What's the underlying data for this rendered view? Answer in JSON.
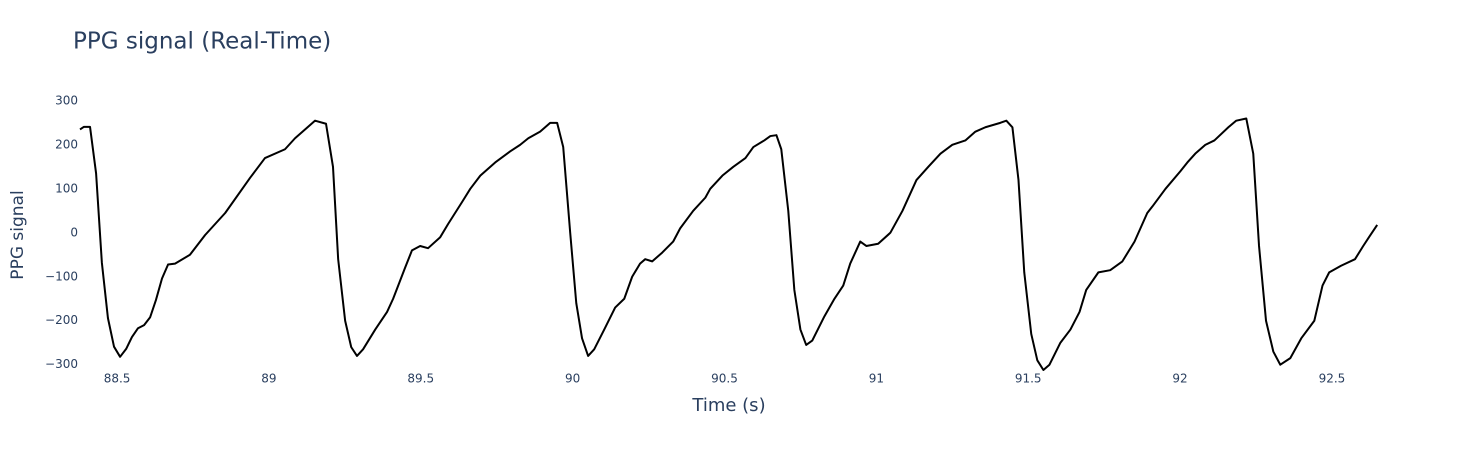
{
  "chart_data": {
    "type": "line",
    "title": "PPG signal (Real-Time)",
    "x_label": "Time (s)",
    "y_label": "PPG signal",
    "xlim": [
      88.378,
      92.655
    ],
    "ylim": [
      -312,
      302
    ],
    "xticks": [
      88.5,
      89,
      89.5,
      90,
      90.5,
      91,
      91.5,
      92,
      92.5
    ],
    "yticks": [
      {
        "value": -300,
        "label": "−300"
      },
      {
        "value": -200,
        "label": "−200"
      },
      {
        "value": -100,
        "label": "−100"
      },
      0,
      100,
      200,
      300
    ],
    "grid": false,
    "x": [
      88.378,
      88.391,
      88.411,
      88.431,
      88.45,
      88.47,
      88.49,
      88.51,
      88.53,
      88.549,
      88.569,
      88.589,
      88.609,
      88.628,
      88.648,
      88.668,
      88.691,
      88.74,
      88.79,
      88.856,
      88.938,
      88.987,
      89.053,
      89.086,
      89.152,
      89.188,
      89.211,
      89.228,
      89.251,
      89.271,
      89.29,
      89.31,
      89.35,
      89.389,
      89.409,
      89.448,
      89.471,
      89.498,
      89.524,
      89.564,
      89.59,
      89.636,
      89.663,
      89.696,
      89.745,
      89.794,
      89.827,
      89.854,
      89.893,
      89.926,
      89.949,
      89.969,
      89.992,
      90.012,
      90.031,
      90.051,
      90.071,
      90.104,
      90.14,
      90.17,
      90.196,
      90.222,
      90.239,
      90.262,
      90.295,
      90.331,
      90.354,
      90.397,
      90.437,
      90.453,
      90.493,
      90.529,
      90.569,
      90.595,
      90.631,
      90.651,
      90.671,
      90.687,
      90.71,
      90.73,
      90.75,
      90.769,
      90.789,
      90.829,
      90.862,
      90.891,
      90.914,
      90.947,
      90.967,
      91.006,
      91.046,
      91.086,
      91.132,
      91.171,
      91.211,
      91.25,
      91.293,
      91.326,
      91.359,
      91.408,
      91.428,
      91.448,
      91.468,
      91.487,
      91.51,
      91.53,
      91.55,
      91.57,
      91.606,
      91.639,
      91.669,
      91.691,
      91.731,
      91.77,
      91.81,
      91.85,
      91.892,
      91.909,
      91.952,
      92.001,
      92.024,
      92.05,
      92.083,
      92.113,
      92.159,
      92.185,
      92.218,
      92.241,
      92.26,
      92.283,
      92.307,
      92.33,
      92.363,
      92.399,
      92.442,
      92.469,
      92.491,
      92.53,
      92.576,
      92.603,
      92.622,
      92.649
    ],
    "series": [
      {
        "color": "#000000",
        "values": [
          235,
          241,
          241,
          135,
          -68,
          -194,
          -259,
          -282,
          -264,
          -237,
          -217,
          -210,
          -192,
          -153,
          -104,
          -72,
          -70,
          -50,
          -5,
          45,
          125,
          170,
          190,
          215,
          255,
          248,
          150,
          -60,
          -200,
          -260,
          -280,
          -265,
          -220,
          -180,
          -150,
          -80,
          -40,
          -30,
          -35,
          -10,
          20,
          70,
          100,
          130,
          160,
          185,
          200,
          215,
          230,
          250,
          250,
          195,
          0,
          -160,
          -240,
          -280,
          -265,
          -220,
          -170,
          -150,
          -100,
          -70,
          -60,
          -65,
          -45,
          -20,
          10,
          50,
          80,
          100,
          130,
          150,
          170,
          195,
          210,
          220,
          222,
          190,
          50,
          -130,
          -220,
          -255,
          -245,
          -190,
          -150,
          -120,
          -70,
          -20,
          -30,
          -25,
          0,
          50,
          120,
          150,
          180,
          200,
          210,
          230,
          240,
          250,
          255,
          240,
          120,
          -90,
          -230,
          -290,
          -312,
          -300,
          -250,
          -220,
          -180,
          -130,
          -90,
          -85,
          -65,
          -20,
          45,
          60,
          100,
          140,
          160,
          180,
          200,
          210,
          240,
          255,
          260,
          180,
          -30,
          -200,
          -270,
          -300,
          -285,
          -240,
          -200,
          -120,
          -90,
          -75,
          -60,
          -30,
          -10,
          18
        ]
      }
    ]
  }
}
